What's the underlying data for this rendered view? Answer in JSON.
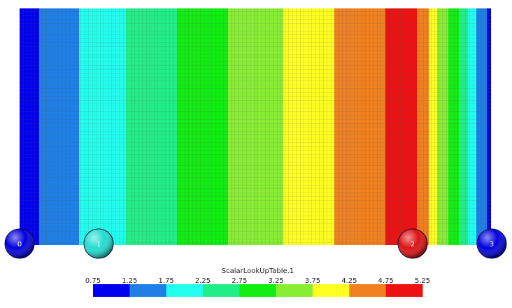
{
  "field": {
    "columns": [
      {
        "value": 1.0,
        "color": "#0000ee"
      },
      {
        "value": 1.5,
        "color": "#1f7fe6"
      },
      {
        "value": 2.0,
        "color": "#22ffee"
      },
      {
        "value": 2.5,
        "color": "#22ee88"
      },
      {
        "value": 3.0,
        "color": "#11ee11"
      },
      {
        "value": 3.5,
        "color": "#88ee33"
      },
      {
        "value": 4.0,
        "color": "#ffff22"
      },
      {
        "value": 4.5,
        "color": "#f08020"
      },
      {
        "value": 5.0,
        "color": "#ee1111"
      },
      {
        "value": 4.5,
        "color": "#f08020"
      },
      {
        "value": 4.0,
        "color": "#ffff22"
      },
      {
        "value": 3.5,
        "color": "#88ee33"
      },
      {
        "value": 3.0,
        "color": "#11ee11"
      },
      {
        "value": 2.5,
        "color": "#22ee88"
      },
      {
        "value": 2.0,
        "color": "#22ffee"
      },
      {
        "value": 1.5,
        "color": "#1f7fe6"
      },
      {
        "value": 1.0,
        "color": "#0000ee"
      }
    ]
  },
  "nodes": [
    {
      "label": "0",
      "color": "#0000dd"
    },
    {
      "label": "1",
      "color": "#22ddd0"
    },
    {
      "label": "2",
      "color": "#dd1111"
    },
    {
      "label": "3",
      "color": "#0000dd"
    }
  ],
  "legend": {
    "title": "ScalarLookUpTable.1",
    "range": [
      0.75,
      5.25
    ],
    "ticks": [
      "0.75",
      "1.25",
      "1.75",
      "2.25",
      "2.75",
      "3.25",
      "3.75",
      "4.25",
      "4.75",
      "5.25"
    ],
    "colors": [
      "#0000ee",
      "#1f7fe6",
      "#22ffee",
      "#22ee88",
      "#11ee11",
      "#88ee33",
      "#ffff22",
      "#f08020",
      "#ee1111"
    ]
  }
}
